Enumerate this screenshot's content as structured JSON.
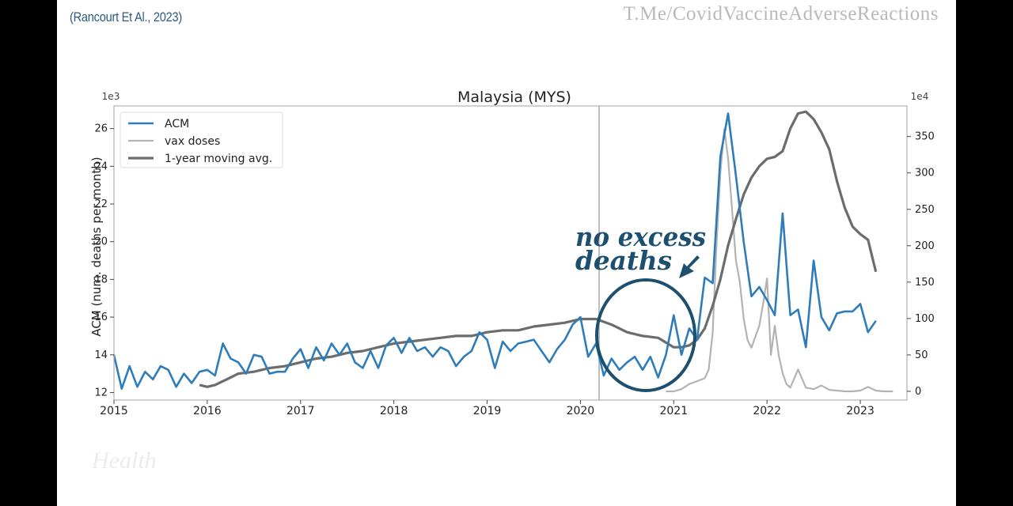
{
  "citation": "(Rancourt Et Al., 2023)",
  "watermark": "T.Me/CovidVaccineAdverseReactions",
  "bottom_logo": "Health",
  "annotation": {
    "line1": "no excess",
    "line2": "deaths"
  },
  "colors": {
    "acm": "#2f7cba",
    "vax": "#b3b3b3",
    "moving_avg": "#6c6c6c",
    "annotation": "#1d4f6e",
    "vline": "#a9a9a9",
    "axes": "#b0b0b0",
    "text": "#222222"
  },
  "chart_data": {
    "type": "line",
    "title": "Malaysia (MYS)",
    "ylabel": "ACM (num. deaths per month)",
    "y_multiplier_label": "1e3",
    "y2_multiplier_label": "1e4",
    "xlim": [
      2015.0,
      2023.5
    ],
    "ylim": [
      11.6,
      27.2
    ],
    "y2lim": [
      -12,
      392
    ],
    "x_ticks": [
      2015,
      2016,
      2017,
      2018,
      2019,
      2020,
      2021,
      2022,
      2023
    ],
    "y_ticks": [
      12,
      14,
      16,
      18,
      20,
      22,
      24,
      26
    ],
    "y2_ticks": [
      0,
      50,
      100,
      150,
      200,
      250,
      300,
      350
    ],
    "vline_x": 2020.2,
    "grid": false,
    "legend": "top-left",
    "series": [
      {
        "name": "ACM",
        "axis": "left",
        "x": [
          2015.0,
          2015.083,
          2015.167,
          2015.25,
          2015.333,
          2015.417,
          2015.5,
          2015.583,
          2015.667,
          2015.75,
          2015.833,
          2015.917,
          2016.0,
          2016.083,
          2016.167,
          2016.25,
          2016.333,
          2016.417,
          2016.5,
          2016.583,
          2016.667,
          2016.75,
          2016.833,
          2016.917,
          2017.0,
          2017.083,
          2017.167,
          2017.25,
          2017.333,
          2017.417,
          2017.5,
          2017.583,
          2017.667,
          2017.75,
          2017.833,
          2017.917,
          2018.0,
          2018.083,
          2018.167,
          2018.25,
          2018.333,
          2018.417,
          2018.5,
          2018.583,
          2018.667,
          2018.75,
          2018.833,
          2018.917,
          2019.0,
          2019.083,
          2019.167,
          2019.25,
          2019.333,
          2019.417,
          2019.5,
          2019.583,
          2019.667,
          2019.75,
          2019.833,
          2019.917,
          2020.0,
          2020.083,
          2020.167,
          2020.25,
          2020.333,
          2020.417,
          2020.5,
          2020.583,
          2020.667,
          2020.75,
          2020.833,
          2020.917,
          2021.0,
          2021.083,
          2021.167,
          2021.25,
          2021.333,
          2021.417,
          2021.5,
          2021.583,
          2021.667,
          2021.75,
          2021.833,
          2021.917,
          2022.0,
          2022.083,
          2022.167,
          2022.25,
          2022.333,
          2022.417,
          2022.5,
          2022.583,
          2022.667,
          2022.75,
          2022.833,
          2022.917,
          2023.0,
          2023.083,
          2023.167
        ],
        "values": [
          14.0,
          12.2,
          13.4,
          12.3,
          13.1,
          12.7,
          13.4,
          13.2,
          12.3,
          13.0,
          12.5,
          13.1,
          13.2,
          12.9,
          14.6,
          13.8,
          13.6,
          13.0,
          14.0,
          13.9,
          13.0,
          13.1,
          13.1,
          13.8,
          14.3,
          13.3,
          14.4,
          13.7,
          14.6,
          14.0,
          14.6,
          13.6,
          13.3,
          14.2,
          13.3,
          14.5,
          14.9,
          14.1,
          14.9,
          14.2,
          14.4,
          13.9,
          14.4,
          14.2,
          13.4,
          13.9,
          14.2,
          15.2,
          14.8,
          13.3,
          14.7,
          14.2,
          14.6,
          14.7,
          14.8,
          14.2,
          13.6,
          14.3,
          14.8,
          15.6,
          16.0,
          13.9,
          14.6,
          12.9,
          13.8,
          13.2,
          13.6,
          13.9,
          13.2,
          13.9,
          12.8,
          14.0,
          16.1,
          14.0,
          15.4,
          14.8,
          18.1,
          17.8,
          24.5,
          26.8,
          23.5,
          20.0,
          17.1,
          17.6,
          16.9,
          16.1,
          21.5,
          16.1,
          16.4,
          14.4,
          19.0,
          16.0,
          15.3,
          16.2,
          16.3,
          16.3,
          16.7,
          15.2,
          15.8
        ]
      },
      {
        "name": "vax doses",
        "axis": "right",
        "x": [
          2020.917,
          2021.0,
          2021.083,
          2021.167,
          2021.25,
          2021.333,
          2021.375,
          2021.417,
          2021.458,
          2021.5,
          2021.542,
          2021.583,
          2021.625,
          2021.667,
          2021.708,
          2021.75,
          2021.792,
          2021.833,
          2021.875,
          2021.917,
          2021.958,
          2022.0,
          2022.042,
          2022.083,
          2022.125,
          2022.167,
          2022.208,
          2022.25,
          2022.333,
          2022.417,
          2022.5,
          2022.583,
          2022.667,
          2022.75,
          2022.833,
          2022.917,
          2023.0,
          2023.083,
          2023.167,
          2023.25,
          2023.35
        ],
        "values": [
          0,
          0,
          3,
          10,
          14,
          18,
          30,
          80,
          200,
          300,
          360,
          320,
          250,
          180,
          150,
          100,
          70,
          60,
          75,
          90,
          120,
          155,
          50,
          90,
          50,
          25,
          10,
          5,
          30,
          5,
          3,
          8,
          2,
          1,
          0,
          0,
          1,
          6,
          1,
          0,
          0
        ]
      },
      {
        "name": "1-year moving avg.",
        "axis": "left",
        "x": [
          2015.917,
          2016.0,
          2016.083,
          2016.167,
          2016.25,
          2016.333,
          2016.5,
          2016.667,
          2016.833,
          2017.0,
          2017.167,
          2017.333,
          2017.5,
          2017.667,
          2017.833,
          2018.0,
          2018.167,
          2018.333,
          2018.5,
          2018.667,
          2018.833,
          2019.0,
          2019.167,
          2019.333,
          2019.5,
          2019.667,
          2019.833,
          2020.0,
          2020.167,
          2020.333,
          2020.5,
          2020.667,
          2020.833,
          2021.0,
          2021.083,
          2021.167,
          2021.25,
          2021.333,
          2021.417,
          2021.5,
          2021.583,
          2021.667,
          2021.75,
          2021.833,
          2021.917,
          2022.0,
          2022.083,
          2022.167,
          2022.25,
          2022.333,
          2022.417,
          2022.5,
          2022.583,
          2022.667,
          2022.75,
          2022.833,
          2022.917,
          2023.0,
          2023.083,
          2023.167
        ],
        "values": [
          12.4,
          12.3,
          12.4,
          12.6,
          12.8,
          13.0,
          13.1,
          13.3,
          13.4,
          13.6,
          13.8,
          13.9,
          14.1,
          14.2,
          14.4,
          14.6,
          14.7,
          14.8,
          14.9,
          15.0,
          15.0,
          15.2,
          15.3,
          15.3,
          15.5,
          15.6,
          15.7,
          15.9,
          15.9,
          15.6,
          15.2,
          15.0,
          14.9,
          14.4,
          14.4,
          14.5,
          14.8,
          15.4,
          16.6,
          18.0,
          19.8,
          21.2,
          22.5,
          23.4,
          24.0,
          24.4,
          24.5,
          24.8,
          26.0,
          26.8,
          26.9,
          26.5,
          25.8,
          24.9,
          23.2,
          21.8,
          20.8,
          20.4,
          20.1,
          18.4
        ]
      }
    ]
  }
}
